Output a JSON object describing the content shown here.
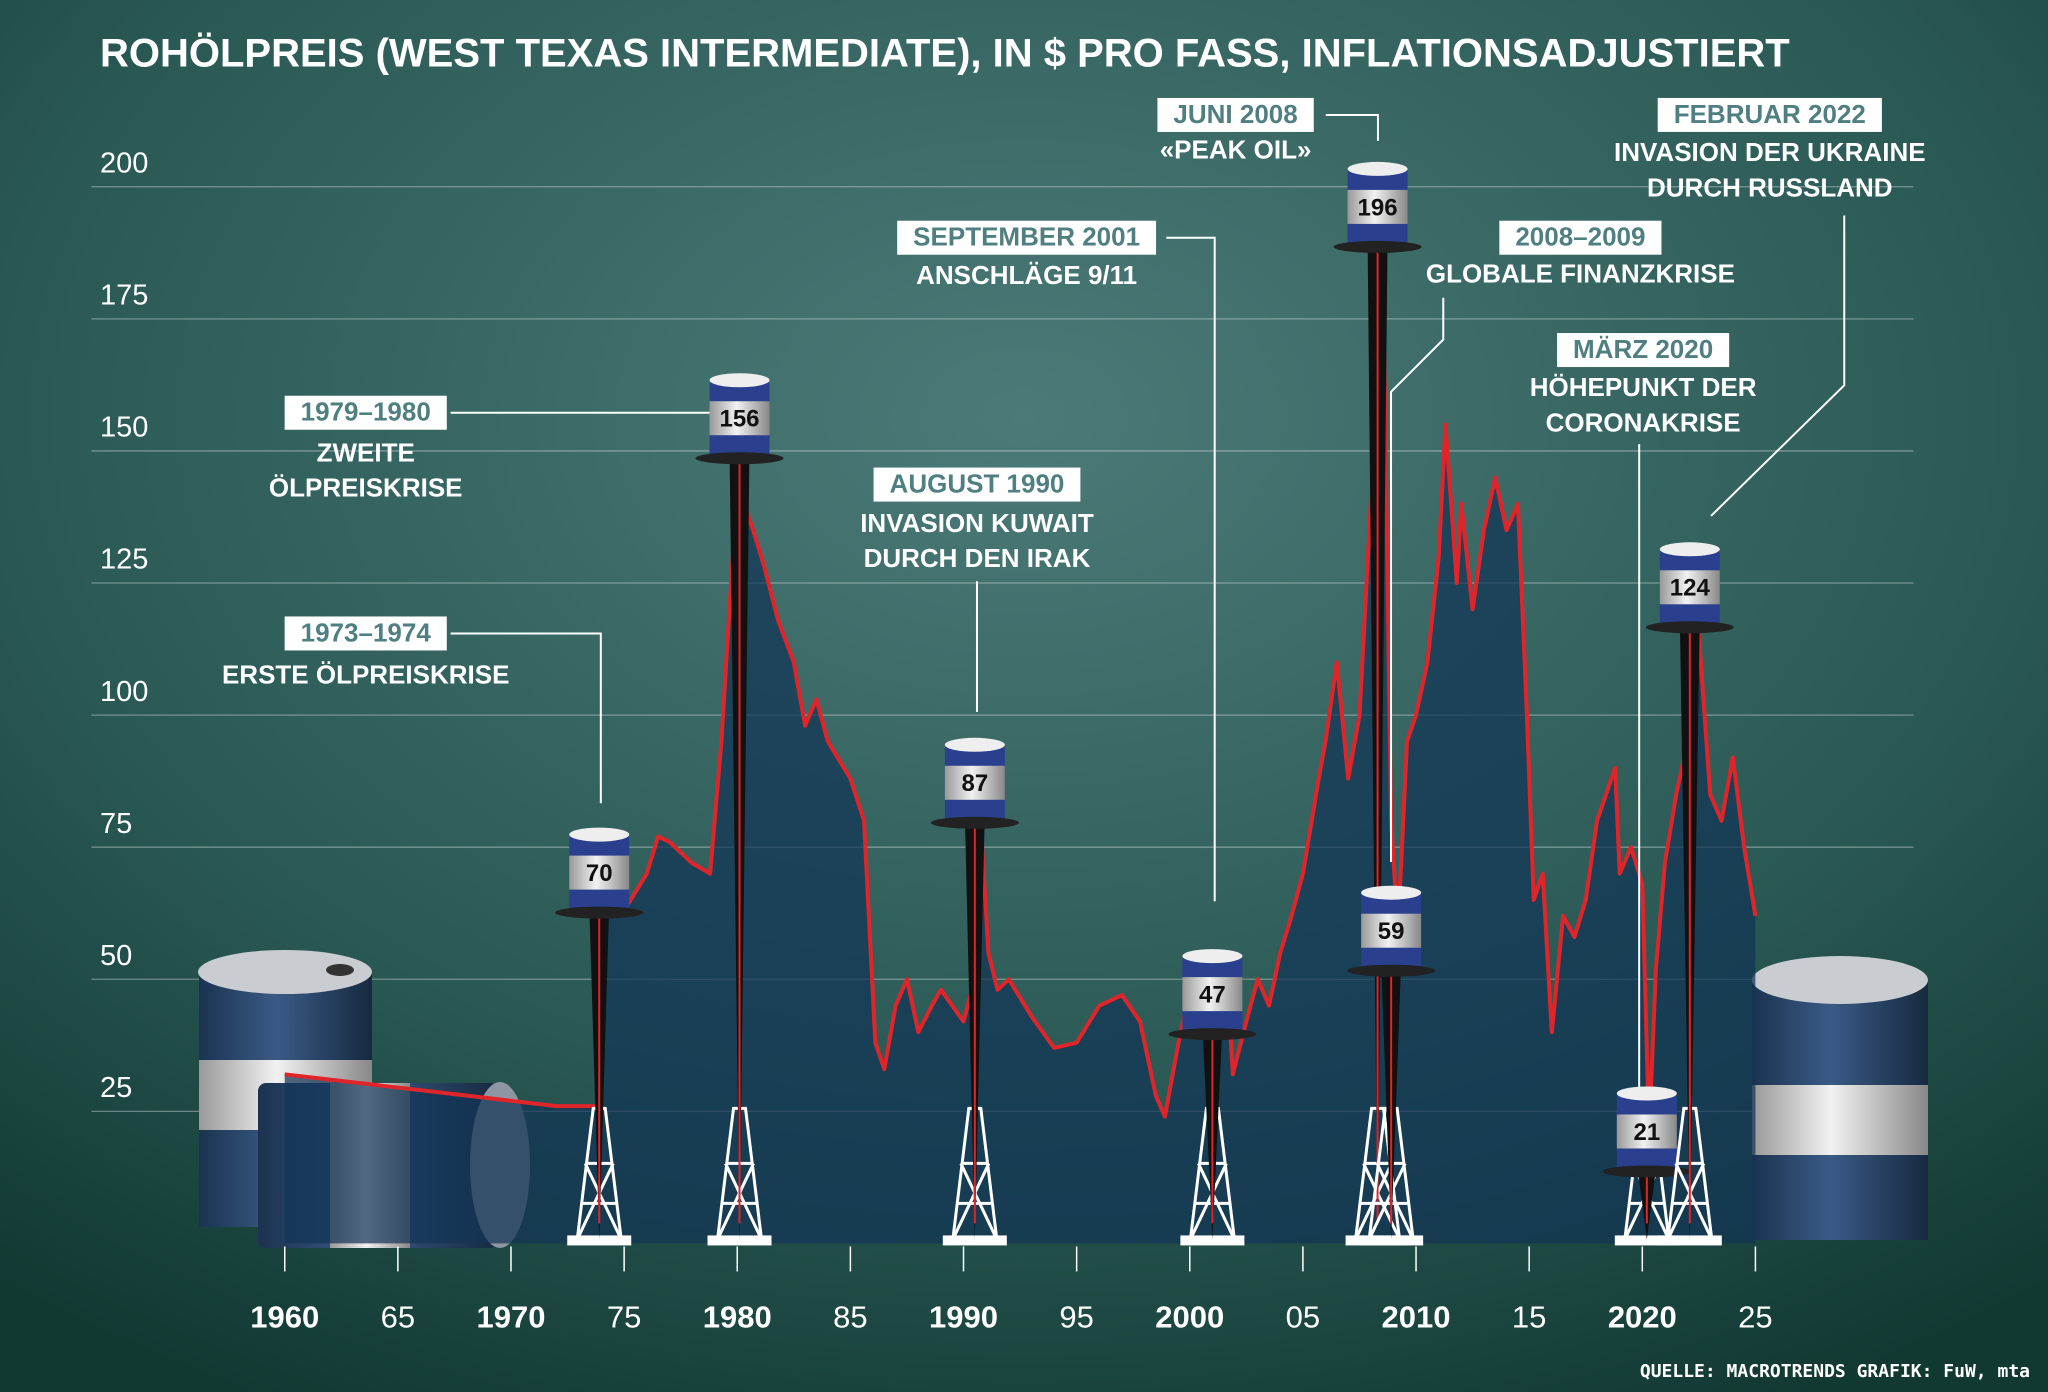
{
  "chart_data": {
    "type": "line",
    "title": "ROHÖLPREIS (WEST TEXAS INTERMEDIATE), IN $ PRO FASS, INFLATIONSADJUSTIERT",
    "source": "QUELLE: MACROTRENDS  GRAFIK: FuW, mta",
    "xlim": [
      1960,
      2025
    ],
    "ylim": [
      0,
      200
    ],
    "yticks": [
      25,
      50,
      75,
      100,
      125,
      150,
      175,
      200
    ],
    "xticks": [
      1960,
      {
        "value": 1965,
        "label": "65"
      },
      1970,
      {
        "value": 1975,
        "label": "75"
      },
      1980,
      {
        "value": 1985,
        "label": "85"
      },
      1990,
      {
        "value": 1995,
        "label": "95"
      },
      2000,
      {
        "value": 2005,
        "label": "05"
      },
      2010,
      {
        "value": 2015,
        "label": "15"
      },
      2020,
      {
        "value": 2025,
        "label": "25"
      }
    ],
    "grid": true,
    "series": [
      {
        "color": "#e0252a",
        "x": [
          1960,
          1962,
          1964,
          1966,
          1968,
          1970,
          1972,
          1973.8,
          1974.0,
          1974.5,
          1975,
          1976,
          1976.5,
          1977,
          1978,
          1978.8,
          1979.3,
          1979.8,
          1980.3,
          1980.7,
          1981.2,
          1981.8,
          1982.5,
          1983,
          1983.5,
          1984,
          1985,
          1985.6,
          1986.1,
          1986.5,
          1987,
          1987.5,
          1988,
          1988.6,
          1989,
          1990,
          1990.5,
          1990.8,
          1991.1,
          1991.5,
          1992,
          1993,
          1994,
          1995,
          1996,
          1997,
          1997.8,
          1998.5,
          1998.9,
          1999.5,
          2000,
          2000.5,
          2001,
          2001.7,
          2001.9,
          2002.5,
          2003,
          2003.5,
          2004,
          2004.5,
          2005,
          2005.7,
          2006,
          2006.5,
          2007,
          2007.5,
          2008,
          2008.5,
          2008.9,
          2009.2,
          2009.6,
          2010,
          2010.5,
          2011,
          2011.3,
          2011.8,
          2012,
          2012.5,
          2013,
          2013.5,
          2014,
          2014.5,
          2014.9,
          2015.2,
          2015.6,
          2016,
          2016.5,
          2017,
          2017.5,
          2018,
          2018.8,
          2019,
          2019.5,
          2020,
          2020.3,
          2020.6,
          2021,
          2021.5,
          2022,
          2022.2,
          2022.5,
          2023,
          2023.5,
          2024,
          2024.5,
          2025
        ],
        "values": [
          32,
          31,
          30,
          29,
          28,
          27,
          26,
          26,
          62,
          66,
          63,
          70,
          77,
          76,
          72,
          70,
          95,
          130,
          140,
          135,
          128,
          118,
          110,
          98,
          103,
          95,
          88,
          80,
          38,
          33,
          45,
          50,
          40,
          45,
          48,
          42,
          50,
          77,
          55,
          48,
          50,
          43,
          37,
          38,
          45,
          47,
          42,
          28,
          24,
          38,
          48,
          52,
          45,
          47,
          32,
          42,
          50,
          45,
          55,
          62,
          70,
          88,
          95,
          110,
          88,
          100,
          140,
          196,
          80,
          59,
          95,
          100,
          110,
          130,
          155,
          125,
          140,
          120,
          135,
          145,
          135,
          140,
          100,
          65,
          70,
          40,
          62,
          58,
          65,
          80,
          90,
          70,
          75,
          68,
          21,
          52,
          72,
          85,
          95,
          124,
          115,
          85,
          80,
          92,
          75,
          62
        ]
      }
    ],
    "events": [
      {
        "label": "1973–1974",
        "text": [
          "ERSTE ÖLPREISKRISE"
        ],
        "x": 1973.9,
        "value": 70
      },
      {
        "label": "1979–1980",
        "text": [
          "ZWEITE",
          "ÖLPREISKRISE"
        ],
        "x": 1980.1,
        "value": 156
      },
      {
        "label": "AUGUST 1990",
        "text": [
          "INVASION KUWAIT",
          "DURCH DEN IRAK"
        ],
        "x": 1990.5,
        "value": 87
      },
      {
        "label": "SEPTEMBER 2001",
        "text": [
          "ANSCHLÄGE 9/11"
        ],
        "x": 2001.0,
        "value": 47
      },
      {
        "label": "JUNI 2008",
        "text": [
          "«PEAK OIL»"
        ],
        "x": 2008.3,
        "value": 196
      },
      {
        "label": "2008–2009",
        "text": [
          "GLOBALE FINANZKRISE"
        ],
        "x": 2008.9,
        "value": 59
      },
      {
        "label": "MÄRZ 2020",
        "text": [
          "HÖHEPUNKT DER",
          "CORONAKRISE"
        ],
        "x": 2020.2,
        "value": 21
      },
      {
        "label": "FEBRUAR 2022",
        "text": [
          "INVASION DER UKRAINE",
          "DURCH RUSSLAND"
        ],
        "x": 2022.1,
        "value": 124
      }
    ]
  }
}
